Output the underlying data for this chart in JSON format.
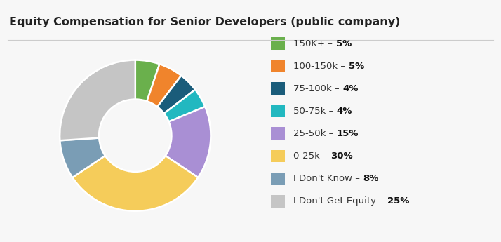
{
  "title": "Equity Compensation for Senior Developers (public company)",
  "title_fontsize": 11.5,
  "title_fontweight": "bold",
  "background_color": "#f7f7f7",
  "slices": [
    {
      "label": "150K+",
      "pct": 5,
      "color": "#6ab04c"
    },
    {
      "label": "100-150k",
      "pct": 5,
      "color": "#f0842c"
    },
    {
      "label": "75-100k",
      "pct": 4,
      "color": "#1a5c7a"
    },
    {
      "label": "50-75k",
      "pct": 4,
      "color": "#22b8c0"
    },
    {
      "label": "25-50k",
      "pct": 15,
      "color": "#a98fd4"
    },
    {
      "label": "0-25k",
      "pct": 30,
      "color": "#f5cc5a"
    },
    {
      "label": "I Don't Know",
      "pct": 8,
      "color": "#7a9db5"
    },
    {
      "label": "I Don't Get Equity",
      "pct": 25,
      "color": "#c5c5c5"
    }
  ],
  "legend_labels": [
    "150K+",
    "100-150k",
    "75-100k",
    "50-75k",
    "25-50k",
    "0-25k",
    "I Don't Know",
    "I Don't Get Equity"
  ],
  "legend_pcts": [
    "5%",
    "5%",
    "4%",
    "4%",
    "15%",
    "30%",
    "8%",
    "25%"
  ],
  "start_angle": 90,
  "figsize": [
    7.14,
    3.45
  ],
  "dpi": 100
}
